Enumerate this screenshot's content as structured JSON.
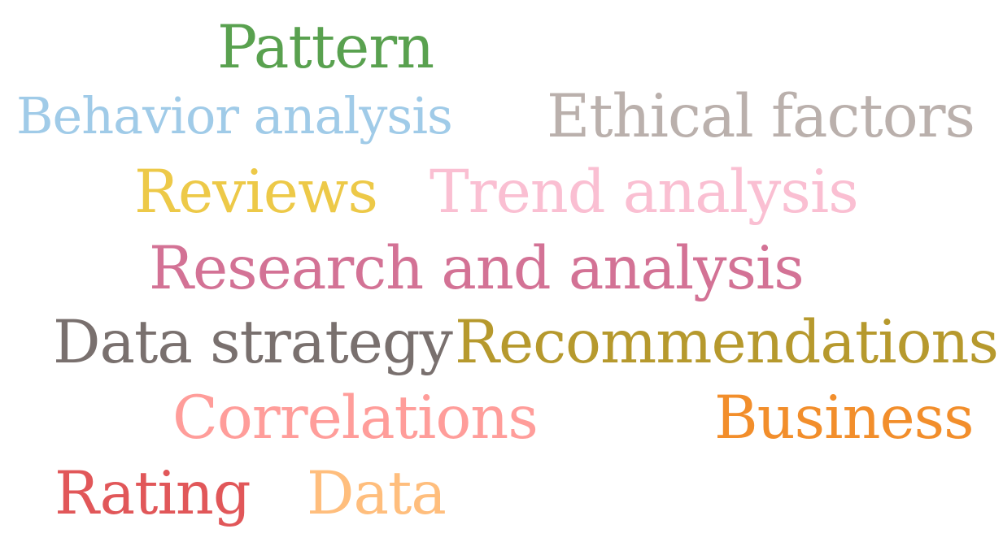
{
  "words": [
    {
      "text": "Pattern",
      "color": "#59a14f"
    },
    {
      "text": "Behavior analysis",
      "color": "#a0cbe8"
    },
    {
      "text": "Ethical factors",
      "color": "#bab0ac"
    },
    {
      "text": "Reviews",
      "color": "#edc948"
    },
    {
      "text": "Trend analysis",
      "color": "#fabfd2"
    },
    {
      "text": "Research and analysis",
      "color": "#d37295"
    },
    {
      "text": "Data strategy",
      "color": "#79706e"
    },
    {
      "text": "Recommendations",
      "color": "#b6992d"
    },
    {
      "text": "Correlations",
      "color": "#ff9d9a"
    },
    {
      "text": "Business",
      "color": "#f28e2b"
    },
    {
      "text": "Rating",
      "color": "#e15759"
    },
    {
      "text": "Data",
      "color": "#ffbe7d"
    }
  ]
}
